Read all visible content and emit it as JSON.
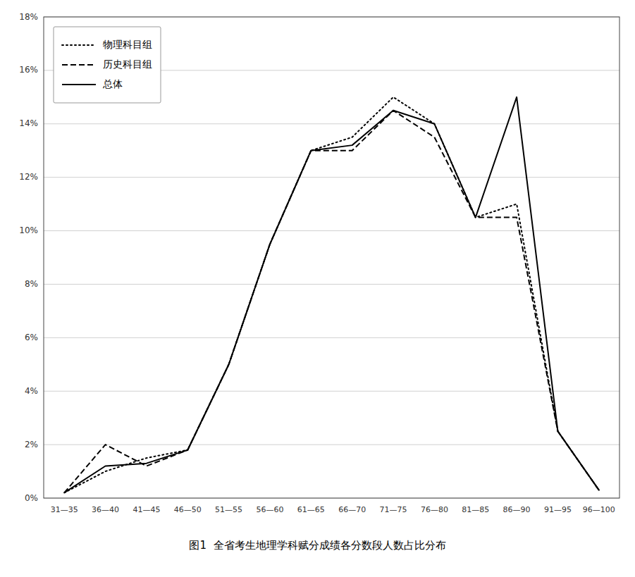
{
  "chart_data": {
    "type": "line",
    "title": "图1  全省考生地理学科赋分成绩各分数段人数占比分布",
    "categories": [
      "31—35",
      "36—40",
      "41—45",
      "46—50",
      "51—55",
      "56—60",
      "61—65",
      "66—70",
      "71—75",
      "76—80",
      "81—85",
      "86—90",
      "91—95",
      "96—100"
    ],
    "series": [
      {
        "name": "物理科目组",
        "color": "#000000",
        "line_style": "dotted",
        "values": [
          0.2,
          1.0,
          1.5,
          1.8,
          5.0,
          9.5,
          13.0,
          13.5,
          15.0,
          14.0,
          10.5,
          11.0,
          2.5,
          0.3
        ]
      },
      {
        "name": "历史科目组",
        "color": "#000000",
        "line_style": "dashed",
        "values": [
          0.2,
          2.0,
          1.2,
          1.8,
          5.0,
          9.5,
          13.0,
          13.0,
          14.5,
          13.5,
          10.5,
          10.5,
          2.5,
          0.3
        ]
      },
      {
        "name": "总体",
        "color": "#000000",
        "line_style": "solid",
        "values": [
          0.2,
          1.2,
          1.3,
          1.8,
          5.0,
          9.5,
          13.0,
          13.2,
          14.5,
          14.0,
          10.5,
          15.0,
          2.5,
          0.3
        ]
      }
    ],
    "ylim": [
      0,
      18
    ],
    "yticks": [
      {
        "value": 0,
        "label": "0%"
      },
      {
        "value": 2,
        "label": "2%"
      },
      {
        "value": 4,
        "label": "4%"
      },
      {
        "value": 6,
        "label": "6%"
      },
      {
        "value": 8,
        "label": "8%"
      },
      {
        "value": 10,
        "label": "10%"
      },
      {
        "value": 12,
        "label": "12%"
      },
      {
        "value": 14,
        "label": "14%"
      },
      {
        "value": 16,
        "label": "16%"
      },
      {
        "value": 18,
        "label": "18%"
      }
    ],
    "grid": true,
    "legend": "upper-left"
  }
}
